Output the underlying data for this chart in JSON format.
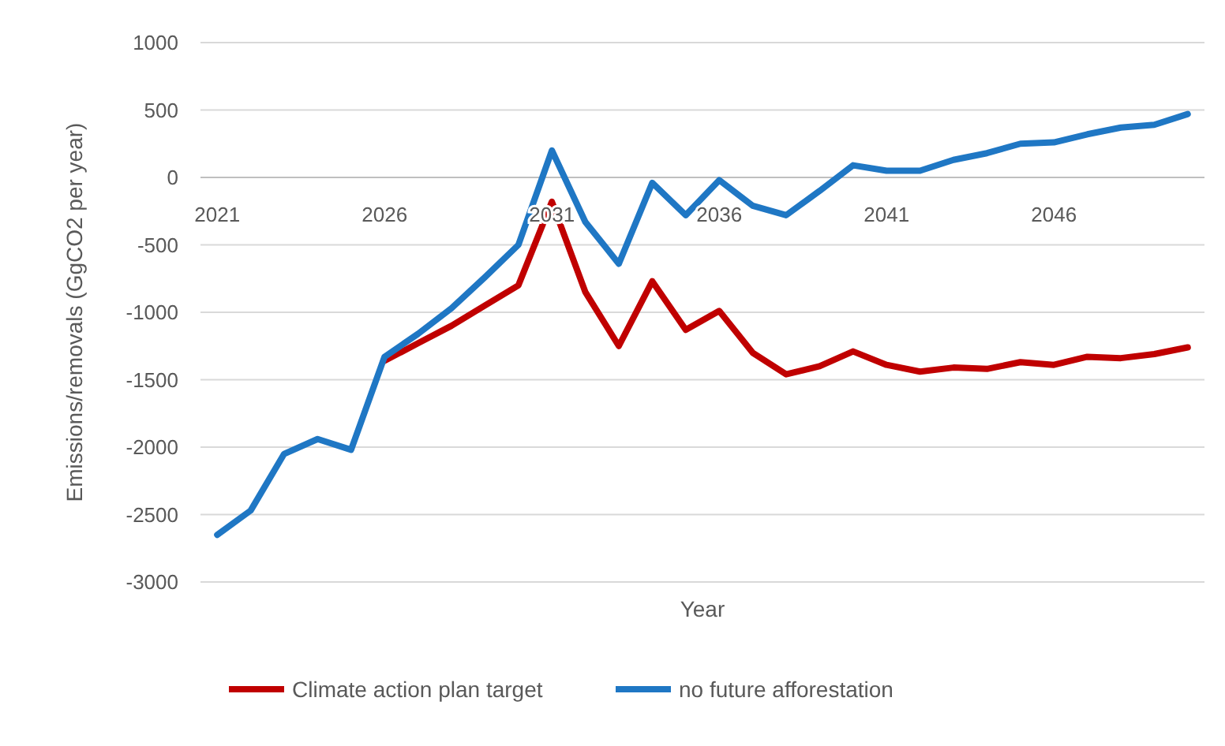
{
  "chart_data": {
    "type": "line",
    "xlabel": "Year",
    "ylabel": "Emissions/removals (GgCO2  per year)",
    "categories": [
      "2021",
      null,
      null,
      null,
      null,
      "2026",
      null,
      null,
      null,
      null,
      "2031",
      null,
      null,
      null,
      null,
      "2036",
      null,
      null,
      null,
      null,
      "2041",
      null,
      null,
      null,
      null,
      "2046",
      null,
      null,
      null,
      null
    ],
    "series": [
      {
        "name": "Climate action plan target",
        "color": "#c00000",
        "values": [
          null,
          null,
          null,
          null,
          null,
          -1360,
          -1230,
          -1100,
          -950,
          -800,
          -180,
          -850,
          -1250,
          -770,
          -1130,
          -990,
          -1300,
          -1460,
          -1400,
          -1290,
          -1390,
          -1440,
          -1410,
          -1420,
          -1370,
          -1390,
          -1330,
          -1340,
          -1310,
          -1260
        ]
      },
      {
        "name": "no future afforestation",
        "color": "#1f77c4",
        "values": [
          -2650,
          -2470,
          -2050,
          -1940,
          -2020,
          -1330,
          -1160,
          -970,
          -740,
          -500,
          200,
          -330,
          -640,
          -40,
          -280,
          -20,
          -210,
          -280,
          -100,
          90,
          50,
          50,
          130,
          180,
          250,
          260,
          320,
          370,
          390,
          470
        ]
      }
    ],
    "ylim": [
      -3000,
      1000
    ],
    "yticks": [
      -3000,
      -2500,
      -2000,
      -1500,
      -1000,
      -500,
      0,
      500,
      1000
    ],
    "grid": "y",
    "legend": "bottom",
    "line_style": "solid",
    "marker": "none"
  }
}
